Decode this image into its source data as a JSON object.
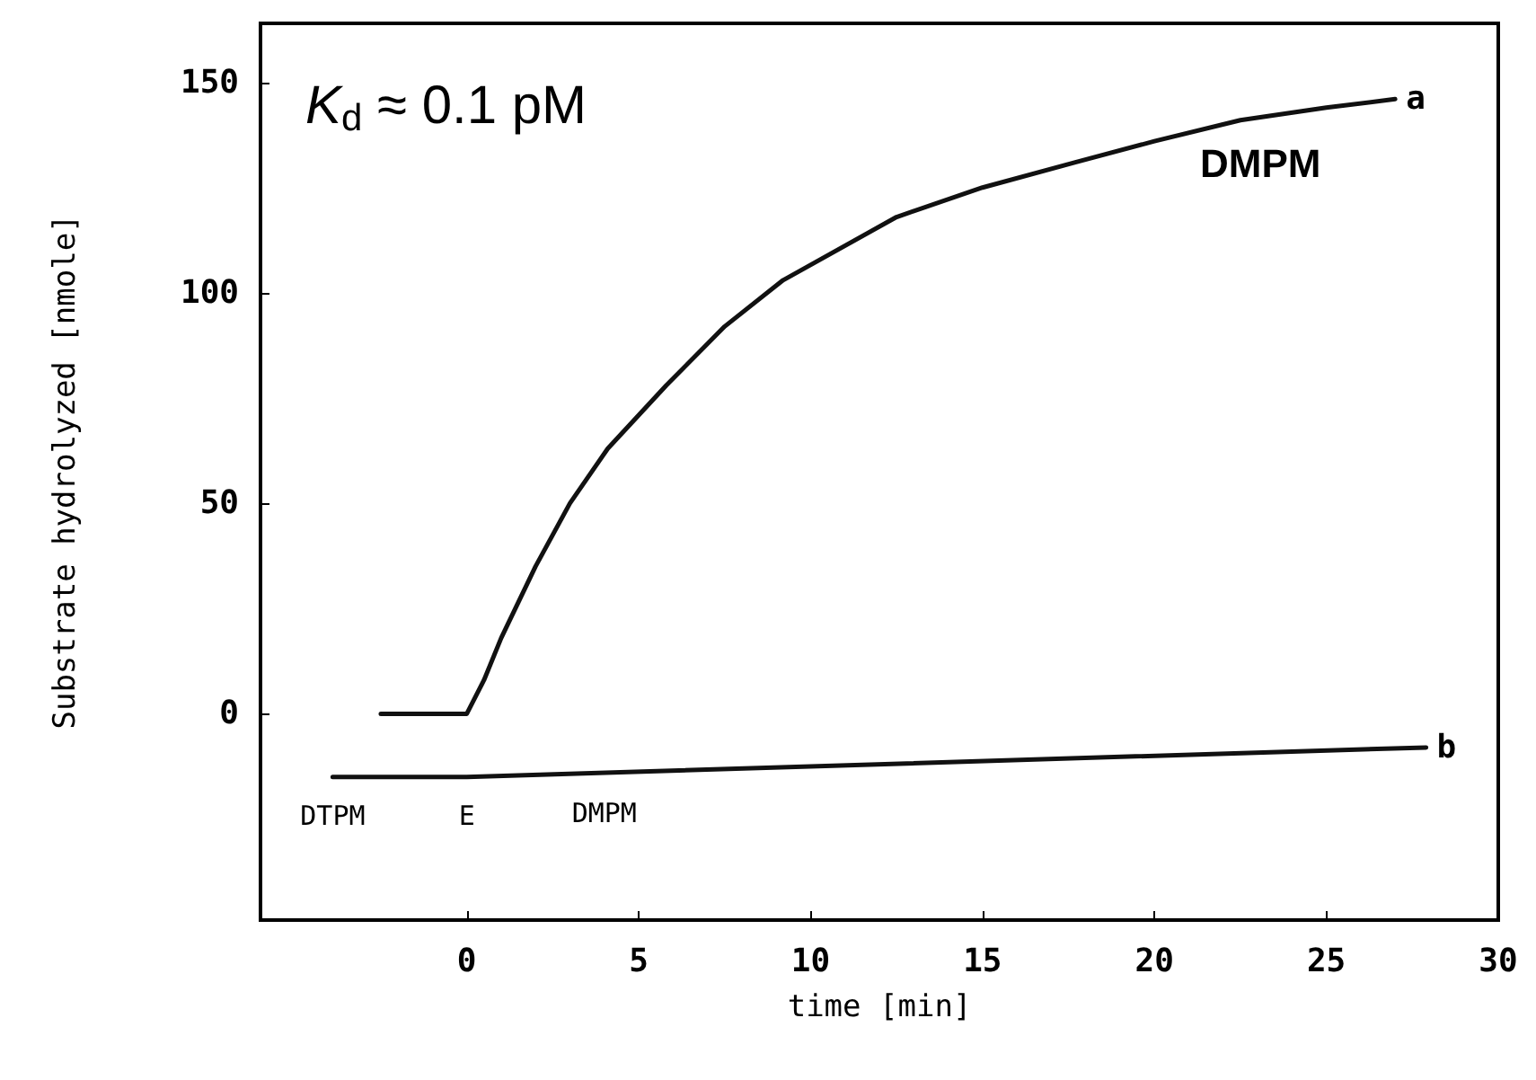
{
  "chart_data": {
    "type": "line",
    "xlabel": "time [min]",
    "ylabel": "Substrate hydrolyzed [nmole]",
    "xlim": [
      -6,
      30
    ],
    "xticks": [
      0,
      5,
      10,
      15,
      20,
      25,
      30
    ],
    "ylim": [
      -49,
      164
    ],
    "yticks": [
      0,
      50,
      100,
      150
    ],
    "grid": false,
    "legend": false,
    "marker": "none",
    "line_style": "solid",
    "series": [
      {
        "name": "a",
        "color": "#111111",
        "x": [
          -2.5,
          0,
          0.5,
          1,
          2,
          3,
          4.1,
          5.8,
          7.5,
          9.2,
          12.5,
          15,
          17.7,
          20,
          22.5,
          25,
          27
        ],
        "values": [
          0,
          0,
          8,
          18,
          35,
          50,
          63,
          78,
          92,
          103,
          118,
          125,
          131,
          136,
          141,
          144,
          146
        ]
      },
      {
        "name": "b",
        "color": "#111111",
        "x": [
          -3.9,
          0,
          27.9
        ],
        "values": [
          -15,
          -15,
          -8
        ]
      }
    ],
    "annotations": [
      "K$_{d}$ ≈ 0.1 pM",
      "DMPM",
      {
        "text": "DTPM",
        "x": -3.9,
        "y": -15
      },
      {
        "text": "E",
        "x": 0,
        "y": -15
      },
      {
        "text": "DMPM",
        "x": 4,
        "y": -14.5
      }
    ]
  }
}
